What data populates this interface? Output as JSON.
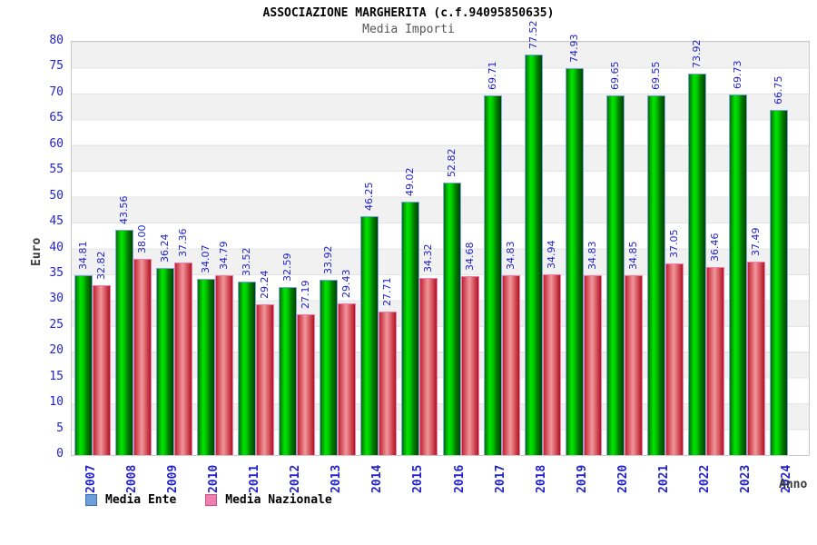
{
  "title": "ASSOCIAZIONE MARGHERITA (c.f.94095850635)",
  "subtitle": "Media Importi",
  "axes": {
    "y_title": "Euro",
    "x_title": "Anno"
  },
  "legend": {
    "ente_label": "Media Ente",
    "nazionale_label": "Media Nazionale",
    "ente_swatch_color": "#6f9fd8",
    "nazionale_swatch_color": "#ef7fae"
  },
  "colors": {
    "label_blue": "#2222cc",
    "green_bar_mid": "#00e600",
    "green_bar_edge": "#004500",
    "red_bar_mid": "#f0989c",
    "red_bar_edge": "#b01322",
    "green_bar_cap": "#79a7e0",
    "red_bar_cap": "#ef7fae",
    "band_gray": "#f1f1f1"
  },
  "chart_data": {
    "type": "bar",
    "title": "ASSOCIAZIONE MARGHERITA (c.f.94095850635)",
    "subtitle": "Media Importi",
    "xlabel": "Anno",
    "ylabel": "Euro",
    "ylim": [
      0,
      80
    ],
    "ytick_step": 5,
    "grid": "horizontal-bands",
    "legend_position": "bottom-left",
    "categories": [
      "2007",
      "2008",
      "2009",
      "2010",
      "2011",
      "2012",
      "2013",
      "2014",
      "2015",
      "2016",
      "2017",
      "2018",
      "2019",
      "2020",
      "2021",
      "2022",
      "2023",
      "2024"
    ],
    "series": [
      {
        "name": "Media Ente",
        "values": [
          34.81,
          43.56,
          36.24,
          34.07,
          33.52,
          32.59,
          33.92,
          46.25,
          49.02,
          52.82,
          69.71,
          77.52,
          74.93,
          69.65,
          69.55,
          73.92,
          69.73,
          66.75
        ],
        "labels": [
          "34.81",
          "43.56",
          "36.24",
          "34.07",
          "33.52",
          "32.59",
          "33.92",
          "46.25",
          "49.02",
          "52.82",
          "69.71",
          "77.52",
          "74.93",
          "69.65",
          "69.55",
          "73.92",
          "69.73",
          "66.75"
        ]
      },
      {
        "name": "Media Nazionale",
        "values": [
          32.82,
          38.0,
          37.36,
          34.79,
          29.24,
          27.19,
          29.43,
          27.71,
          34.32,
          34.68,
          34.83,
          34.94,
          34.83,
          34.85,
          37.05,
          36.46,
          37.49,
          null
        ],
        "labels": [
          "32.82",
          "38.00",
          "37.36",
          "34.79",
          "29.24",
          "27.19",
          "29.43",
          "27.71",
          "34.32",
          "34.68",
          "34.83",
          "34.94",
          "34.83",
          "34.85",
          "37.05",
          "36.46",
          "37.49",
          ""
        ]
      }
    ]
  }
}
